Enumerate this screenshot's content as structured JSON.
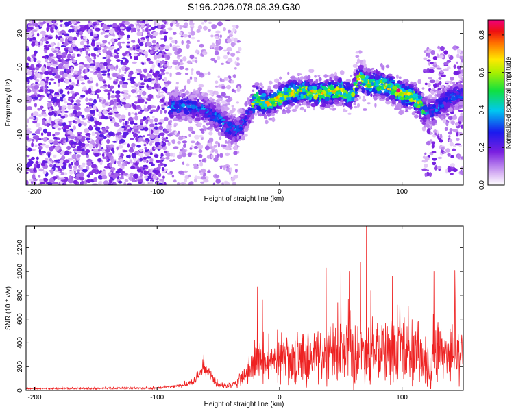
{
  "title": "S196.2026.078.08.39.G30",
  "chart_data": [
    {
      "type": "heatmap",
      "xlabel": "Height of straight line (km)",
      "ylabel": "Frequency (Hz)",
      "xlim": [
        -207,
        150
      ],
      "ylim": [
        -25,
        24
      ],
      "xticks": [
        -200,
        -100,
        0,
        100
      ],
      "yticks": [
        -20,
        -10,
        0,
        10,
        20
      ],
      "xtick_labels": [
        "-200",
        "-100",
        "0",
        "100"
      ],
      "ytick_labels": [
        "-20",
        "-10",
        "0",
        "10",
        "20"
      ],
      "colorbar": {
        "label": "Normalized spectral amplitude",
        "range": [
          0,
          0.88
        ],
        "ticks": [
          0.0,
          0.2,
          0.4,
          0.6,
          0.8
        ],
        "tick_labels": [
          "0.0",
          "0.2",
          "0.4",
          "0.6",
          "0.8"
        ]
      },
      "ridge": {
        "x": [
          -90,
          -80,
          -70,
          -60,
          -50,
          -42,
          -35,
          -30,
          -25,
          -20,
          -15,
          -10,
          -5,
          0,
          5,
          10,
          20,
          30,
          40,
          50,
          55,
          60,
          63,
          65,
          68,
          72,
          80,
          90,
          100,
          110,
          115,
          118,
          125,
          135,
          145
        ],
        "y": [
          -2,
          -1.5,
          -2,
          -3,
          -5,
          -8,
          -9,
          -7,
          -4,
          1,
          0,
          -1,
          0,
          1,
          2,
          2.5,
          3,
          2,
          2.5,
          3,
          2,
          2,
          5,
          8,
          6,
          5,
          5,
          4,
          2,
          1,
          -1,
          -3,
          -3,
          0,
          2
        ],
        "peak": {
          "x": 97,
          "y": 3,
          "value": 0.88
        }
      }
    },
    {
      "type": "line",
      "color": "#ee2222",
      "xlabel": "Height of straight line (km)",
      "ylabel": "SNR (10 * v/v)",
      "xlim": [
        -207,
        150
      ],
      "ylim": [
        0,
        1380
      ],
      "xticks": [
        -200,
        -100,
        0,
        100
      ],
      "yticks": [
        0,
        200,
        400,
        600,
        800,
        1000,
        1200
      ],
      "xtick_labels": [
        "-200",
        "-100",
        "0",
        "100"
      ],
      "ytick_labels": [
        "0",
        "200",
        "400",
        "600",
        "800",
        "1000",
        "1200"
      ],
      "envelope": {
        "x": [
          -207,
          -150,
          -100,
          -80,
          -70,
          -62,
          -58,
          -50,
          -40,
          -35,
          -25,
          -20,
          -10,
          0,
          10,
          20,
          30,
          40,
          50,
          60,
          70,
          80,
          90,
          100,
          110,
          115,
          120,
          125,
          130,
          140,
          150
        ],
        "base": [
          15,
          18,
          20,
          40,
          80,
          180,
          150,
          40,
          40,
          60,
          160,
          220,
          220,
          250,
          260,
          270,
          290,
          300,
          300,
          310,
          320,
          300,
          320,
          320,
          300,
          260,
          200,
          280,
          340,
          320,
          300
        ],
        "amp": [
          8,
          10,
          12,
          20,
          40,
          70,
          60,
          25,
          30,
          50,
          120,
          180,
          200,
          220,
          250,
          270,
          290,
          310,
          320,
          330,
          330,
          320,
          320,
          320,
          310,
          300,
          280,
          300,
          320,
          320,
          300
        ]
      },
      "spikes": [
        {
          "x": -62,
          "y": 300
        },
        {
          "x": -18,
          "y": 870
        },
        {
          "x": -14,
          "y": 760
        },
        {
          "x": 38,
          "y": 1030
        },
        {
          "x": 50,
          "y": 1010
        },
        {
          "x": 57,
          "y": 1000
        },
        {
          "x": 66,
          "y": 1080
        },
        {
          "x": 71,
          "y": 1380
        },
        {
          "x": 92,
          "y": 960
        },
        {
          "x": 126,
          "y": 1000
        },
        {
          "x": 143,
          "y": 1010
        }
      ]
    }
  ]
}
